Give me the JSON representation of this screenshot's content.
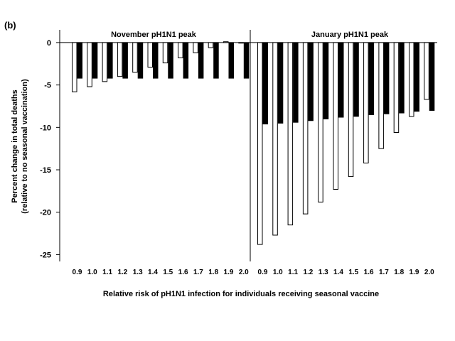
{
  "chart_data": {
    "type": "bar",
    "panel_label": "(b)",
    "xlabel": "Relative risk of pH1N1 infection for individuals  receiving seasonal vaccine",
    "ylabel": [
      "Percent change in total deaths",
      "(relative to no seasonal vaccination)"
    ],
    "ylim": [
      -25.8,
      1.5
    ],
    "yticks": [
      0,
      -5,
      -10,
      -15,
      -20,
      -25
    ],
    "categories": [
      "0.9",
      "1.0",
      "1.1",
      "1.2",
      "1.3",
      "1.4",
      "1.5",
      "1.6",
      "1.7",
      "1.8",
      "1.9",
      "2.0"
    ],
    "colors": {
      "white_bar_fill": "#ffffff",
      "black_bar_fill": "#000000",
      "axis": "#000000"
    },
    "panels": [
      {
        "title": "November pH1N1 peak",
        "series": [
          {
            "style": "white",
            "values": [
              -5.8,
              -5.2,
              -4.6,
              -4.0,
              -3.5,
              -2.9,
              -2.4,
              -1.8,
              -1.2,
              -0.6,
              0.1,
              0.0
            ]
          },
          {
            "style": "black",
            "values": [
              -4.2,
              -4.2,
              -4.2,
              -4.2,
              -4.2,
              -4.2,
              -4.2,
              -4.2,
              -4.2,
              -4.2,
              -4.2,
              -4.2
            ]
          }
        ]
      },
      {
        "title": "January pH1N1 peak",
        "series": [
          {
            "style": "white",
            "values": [
              -23.8,
              -22.7,
              -21.5,
              -20.2,
              -18.8,
              -17.3,
              -15.8,
              -14.2,
              -12.5,
              -10.6,
              -8.7,
              -6.7
            ]
          },
          {
            "style": "black",
            "values": [
              -9.6,
              -9.5,
              -9.4,
              -9.2,
              -9.0,
              -8.8,
              -8.7,
              -8.5,
              -8.4,
              -8.3,
              -8.1,
              -8.0
            ]
          }
        ]
      }
    ]
  }
}
